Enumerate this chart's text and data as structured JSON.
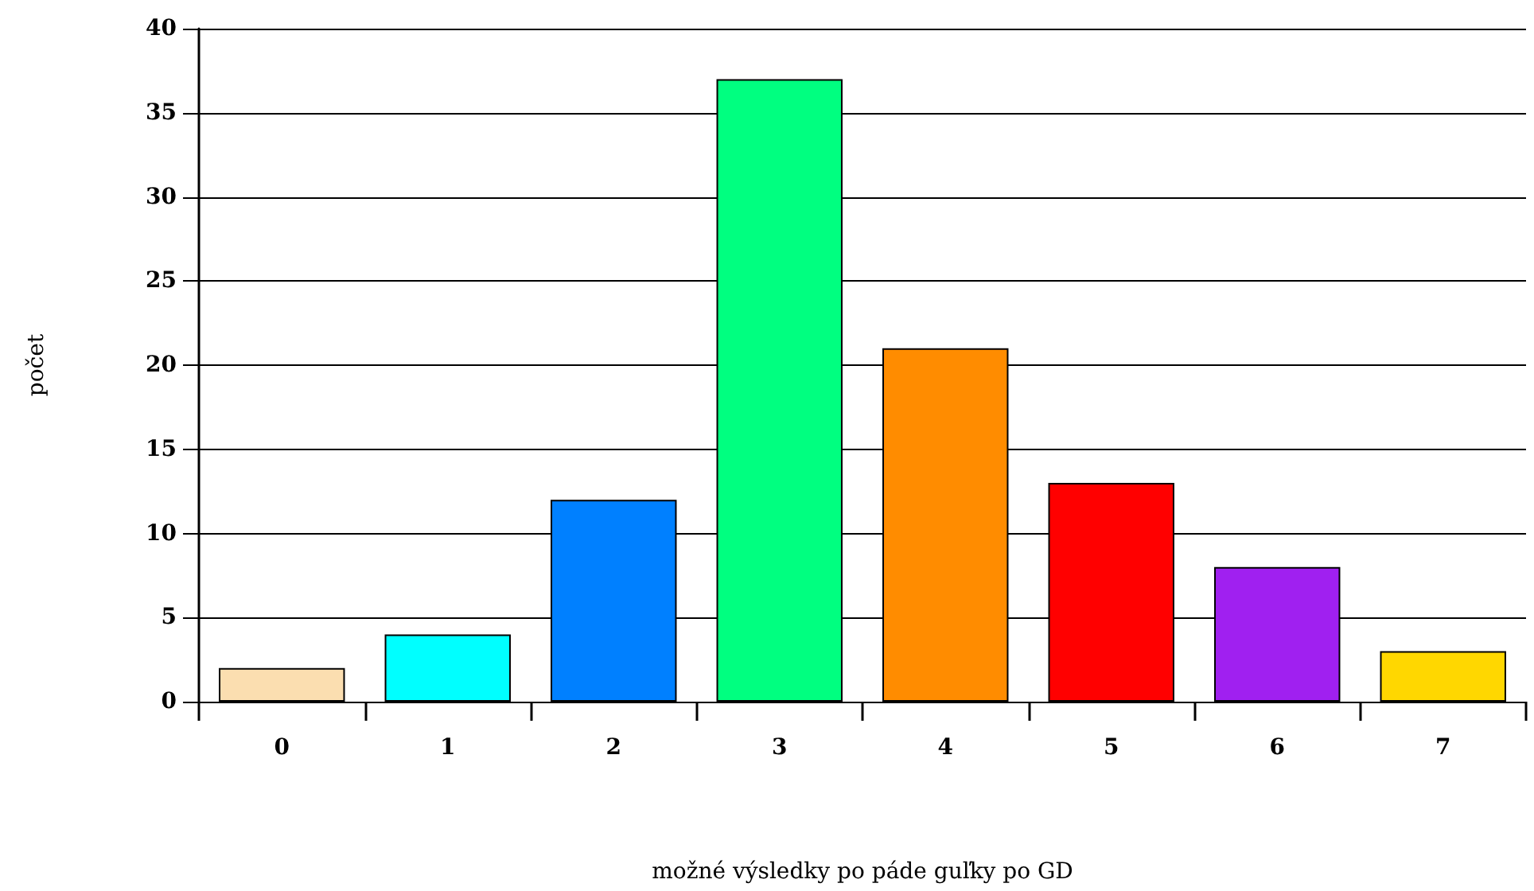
{
  "chart_data": {
    "type": "bar",
    "xlabel": "možné výsledky po páde guľky po GD",
    "ylabel": "počet",
    "categories": [
      "0",
      "1",
      "2",
      "3",
      "4",
      "5",
      "6",
      "7"
    ],
    "values": [
      2,
      4,
      12,
      37,
      21,
      13,
      8,
      3
    ],
    "colors": [
      "#fbdeb0",
      "#00ffff",
      "#0080ff",
      "#00ff80",
      "#ff8c00",
      "#ff0000",
      "#a020f0",
      "#ffd700"
    ],
    "ylim": [
      0,
      40
    ],
    "yticks": [
      0,
      5,
      10,
      15,
      20,
      25,
      30,
      35,
      40
    ],
    "grid": "y"
  }
}
